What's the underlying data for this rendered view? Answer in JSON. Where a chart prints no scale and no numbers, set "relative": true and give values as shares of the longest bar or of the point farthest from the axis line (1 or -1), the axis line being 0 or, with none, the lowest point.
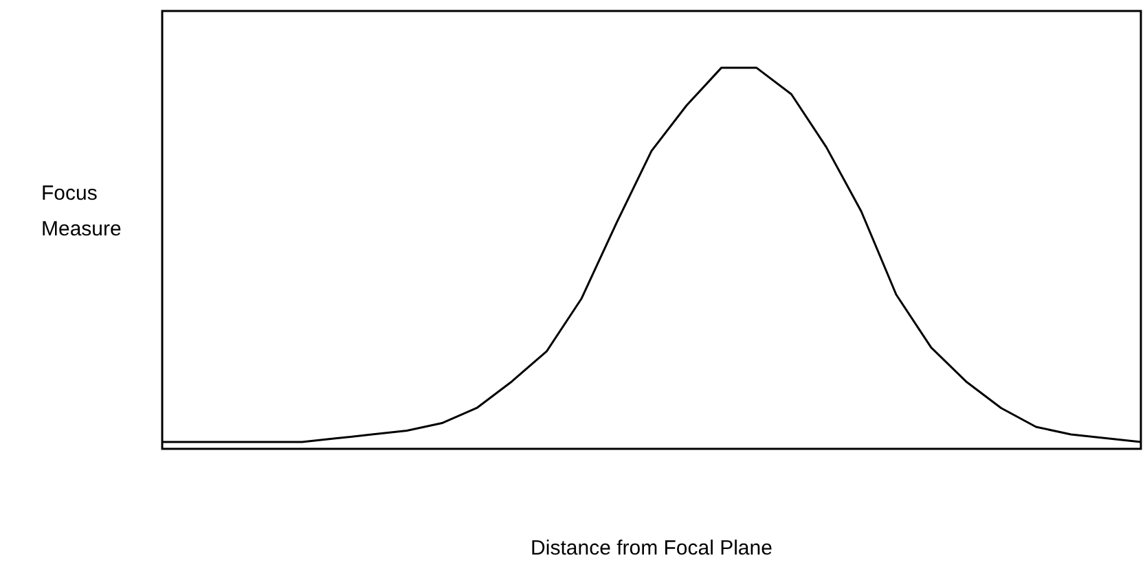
{
  "chart_data": {
    "type": "line",
    "relative": true,
    "xlabel": "Distance from Focal Plane",
    "ylabel": "Focus\nMeasure",
    "marker": "none",
    "grid": false,
    "categories": [
      null,
      null,
      null,
      null,
      null,
      null,
      null,
      null,
      null,
      null,
      null,
      null,
      null,
      null,
      null,
      null,
      null,
      null,
      null,
      null,
      null,
      null,
      null,
      null,
      null,
      null,
      null,
      null,
      null
    ],
    "series": [
      {
        "color": "#000000",
        "values": [
          0.01,
          0.01,
          0.01,
          0.01,
          0.01,
          0.02,
          0.03,
          0.04,
          0.06,
          0.1,
          0.17,
          0.25,
          0.39,
          0.59,
          0.78,
          0.9,
          1,
          1,
          0.93,
          0.79,
          0.62,
          0.4,
          0.26,
          0.17,
          0.1,
          0.05,
          0.03,
          0.02,
          0.01
        ]
      }
    ]
  }
}
